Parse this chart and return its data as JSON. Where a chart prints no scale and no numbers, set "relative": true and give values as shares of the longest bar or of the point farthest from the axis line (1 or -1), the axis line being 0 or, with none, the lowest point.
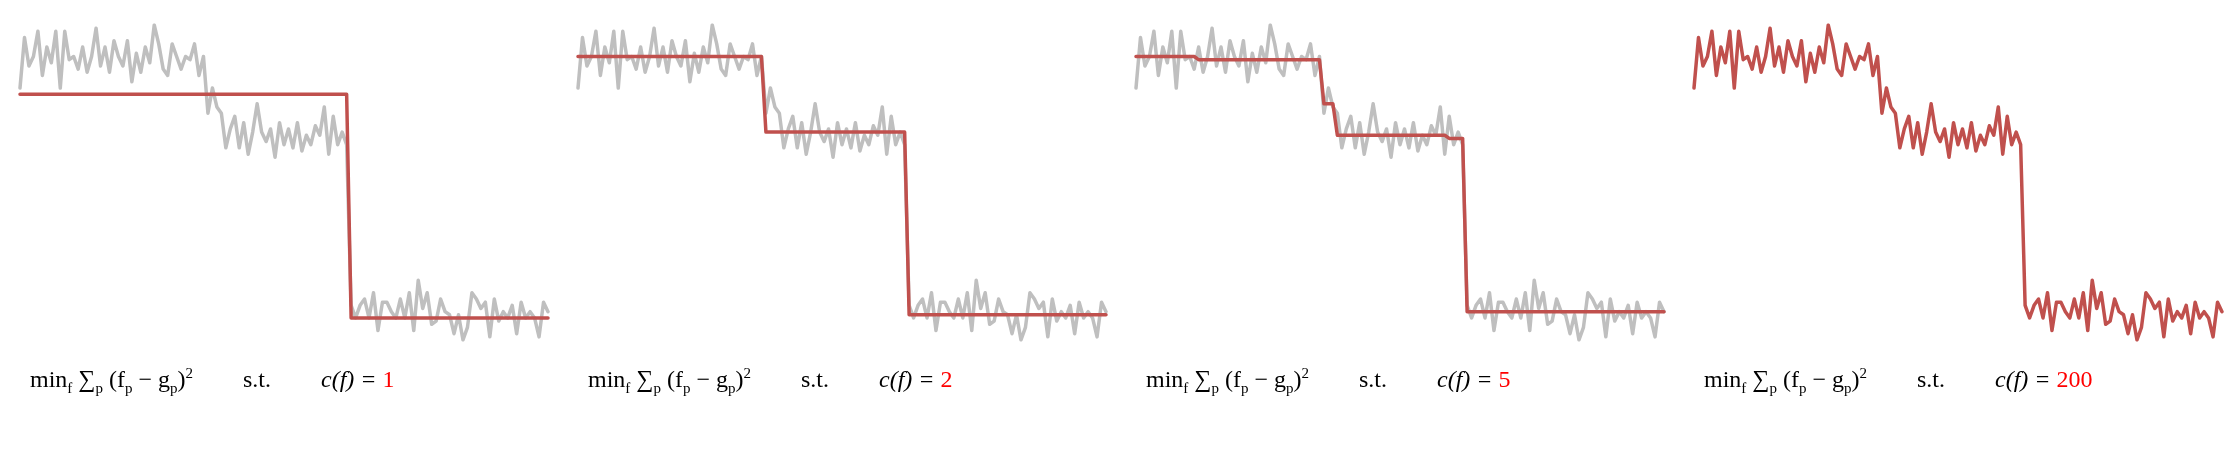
{
  "chart_data": [
    {
      "type": "line",
      "relative": true,
      "categories": [
        null,
        null,
        null,
        null,
        null,
        null,
        null,
        null,
        null,
        null,
        null,
        null,
        null,
        null,
        null,
        null,
        null,
        null,
        null,
        null,
        null,
        null,
        null,
        null,
        null,
        null,
        null,
        null,
        null,
        null,
        null,
        null,
        null,
        null,
        null,
        null,
        null,
        null,
        null,
        null,
        null,
        null,
        null,
        null,
        null,
        null,
        null,
        null,
        null,
        null,
        null,
        null,
        null,
        null,
        null,
        null,
        null,
        null,
        null,
        null,
        null,
        null,
        null,
        null,
        null,
        null,
        null,
        null,
        null,
        null,
        null,
        null,
        null,
        null,
        null,
        null,
        null,
        null,
        null,
        null,
        null,
        null,
        null,
        null,
        null,
        null,
        null,
        null,
        null,
        null,
        null,
        null,
        null,
        null,
        null,
        null,
        null,
        null,
        null,
        null,
        null,
        null,
        null,
        null,
        null,
        null,
        null,
        null,
        null,
        null,
        null,
        null,
        null,
        null,
        null,
        null,
        null,
        null,
        null
      ],
      "series": [
        {
          "color": "#bfbfbf",
          "values": [
            0.8,
            0.96,
            0.87,
            0.9,
            0.98,
            0.84,
            0.93,
            0.88,
            0.98,
            0.8,
            0.98,
            0.89,
            0.9,
            0.86,
            0.93,
            0.85,
            0.9,
            0.99,
            0.87,
            0.93,
            0.85,
            0.95,
            0.9,
            0.87,
            0.95,
            0.82,
            0.91,
            0.85,
            0.93,
            0.88,
            1,
            0.94,
            0.86,
            0.84,
            0.94,
            0.9,
            0.86,
            0.9,
            0.89,
            0.94,
            0.84,
            0.9,
            0.72,
            0.8,
            0.74,
            0.72,
            0.61,
            0.67,
            0.71,
            0.61,
            0.69,
            0.59,
            0.66,
            0.75,
            0.66,
            0.63,
            0.67,
            0.58,
            0.69,
            0.62,
            0.67,
            0.61,
            0.69,
            0.6,
            0.65,
            0.62,
            0.68,
            0.65,
            0.74,
            0.59,
            0.71,
            0.62,
            0.66,
            0.62,
            0.11,
            0.07,
            0.11,
            0.13,
            0.07,
            0.15,
            0.03,
            0.12,
            0.12,
            0.09,
            0.07,
            0.13,
            0.07,
            0.15,
            0.03,
            0.19,
            0.1,
            0.15,
            0.05,
            0.06,
            0.13,
            0.09,
            0.08,
            0.02,
            0.08,
            0,
            0.04,
            0.15,
            0.13,
            0.1,
            0.12,
            0.01,
            0.13,
            0.06,
            0.09,
            0.07,
            0.11,
            0.02,
            0.12,
            0.07,
            0.09,
            0.07,
            0.01,
            0.12,
            0.09
          ]
        },
        {
          "color": "#c0504d",
          "values": [
            0.78,
            0.78,
            0.78,
            0.78,
            0.78,
            0.78,
            0.78,
            0.78,
            0.78,
            0.78,
            0.78,
            0.78,
            0.78,
            0.78,
            0.78,
            0.78,
            0.78,
            0.78,
            0.78,
            0.78,
            0.78,
            0.78,
            0.78,
            0.78,
            0.78,
            0.78,
            0.78,
            0.78,
            0.78,
            0.78,
            0.78,
            0.78,
            0.78,
            0.78,
            0.78,
            0.78,
            0.78,
            0.78,
            0.78,
            0.78,
            0.78,
            0.78,
            0.78,
            0.78,
            0.78,
            0.78,
            0.78,
            0.78,
            0.78,
            0.78,
            0.78,
            0.78,
            0.78,
            0.78,
            0.78,
            0.78,
            0.78,
            0.78,
            0.78,
            0.78,
            0.78,
            0.78,
            0.78,
            0.78,
            0.78,
            0.78,
            0.78,
            0.78,
            0.78,
            0.78,
            0.78,
            0.78,
            0.78,
            0.78,
            0.07,
            0.07,
            0.07,
            0.07,
            0.07,
            0.07,
            0.07,
            0.07,
            0.07,
            0.07,
            0.07,
            0.07,
            0.07,
            0.07,
            0.07,
            0.07,
            0.07,
            0.07,
            0.07,
            0.07,
            0.07,
            0.07,
            0.07,
            0.07,
            0.07,
            0.07,
            0.07,
            0.07,
            0.07,
            0.07,
            0.07,
            0.07,
            0.07,
            0.07,
            0.07,
            0.07,
            0.07,
            0.07,
            0.07,
            0.07,
            0.07,
            0.07,
            0.07,
            0.07,
            0.07
          ]
        }
      ],
      "annotations": [
        "min$_{f}$ ∑$_{p}$ (f$_{p}$ − g$_{p}$)$^{2}$",
        "s.t.",
        "c(f) =",
        "1"
      ]
    },
    {
      "type": "line",
      "relative": true,
      "categories": [
        null,
        null,
        null,
        null,
        null,
        null,
        null,
        null,
        null,
        null,
        null,
        null,
        null,
        null,
        null,
        null,
        null,
        null,
        null,
        null,
        null,
        null,
        null,
        null,
        null,
        null,
        null,
        null,
        null,
        null,
        null,
        null,
        null,
        null,
        null,
        null,
        null,
        null,
        null,
        null,
        null,
        null,
        null,
        null,
        null,
        null,
        null,
        null,
        null,
        null,
        null,
        null,
        null,
        null,
        null,
        null,
        null,
        null,
        null,
        null,
        null,
        null,
        null,
        null,
        null,
        null,
        null,
        null,
        null,
        null,
        null,
        null,
        null,
        null,
        null,
        null,
        null,
        null,
        null,
        null,
        null,
        null,
        null,
        null,
        null,
        null,
        null,
        null,
        null,
        null,
        null,
        null,
        null,
        null,
        null,
        null,
        null,
        null,
        null,
        null,
        null,
        null,
        null,
        null,
        null,
        null,
        null,
        null,
        null,
        null,
        null,
        null,
        null,
        null,
        null,
        null,
        null,
        null,
        null
      ],
      "series": [
        {
          "color": "#bfbfbf",
          "values": [
            0.8,
            0.96,
            0.87,
            0.9,
            0.98,
            0.84,
            0.93,
            0.88,
            0.98,
            0.8,
            0.98,
            0.89,
            0.9,
            0.86,
            0.93,
            0.85,
            0.9,
            0.99,
            0.87,
            0.93,
            0.85,
            0.95,
            0.9,
            0.87,
            0.95,
            0.82,
            0.91,
            0.85,
            0.93,
            0.88,
            1,
            0.94,
            0.86,
            0.84,
            0.94,
            0.9,
            0.86,
            0.9,
            0.89,
            0.94,
            0.84,
            0.9,
            0.72,
            0.8,
            0.74,
            0.72,
            0.61,
            0.67,
            0.71,
            0.61,
            0.69,
            0.59,
            0.66,
            0.75,
            0.66,
            0.63,
            0.67,
            0.58,
            0.69,
            0.62,
            0.67,
            0.61,
            0.69,
            0.6,
            0.65,
            0.62,
            0.68,
            0.65,
            0.74,
            0.59,
            0.71,
            0.62,
            0.66,
            0.62,
            0.11,
            0.07,
            0.11,
            0.13,
            0.07,
            0.15,
            0.03,
            0.12,
            0.12,
            0.09,
            0.07,
            0.13,
            0.07,
            0.15,
            0.03,
            0.19,
            0.1,
            0.15,
            0.05,
            0.06,
            0.13,
            0.09,
            0.08,
            0.02,
            0.08,
            0,
            0.04,
            0.15,
            0.13,
            0.1,
            0.12,
            0.01,
            0.13,
            0.06,
            0.09,
            0.07,
            0.11,
            0.02,
            0.12,
            0.07,
            0.09,
            0.07,
            0.01,
            0.12,
            0.09
          ]
        },
        {
          "color": "#c0504d",
          "values": [
            0.9,
            0.9,
            0.9,
            0.9,
            0.9,
            0.9,
            0.9,
            0.9,
            0.9,
            0.9,
            0.9,
            0.9,
            0.9,
            0.9,
            0.9,
            0.9,
            0.9,
            0.9,
            0.9,
            0.9,
            0.9,
            0.9,
            0.9,
            0.9,
            0.9,
            0.9,
            0.9,
            0.9,
            0.9,
            0.9,
            0.9,
            0.9,
            0.9,
            0.9,
            0.9,
            0.9,
            0.9,
            0.9,
            0.9,
            0.9,
            0.9,
            0.9,
            0.66,
            0.66,
            0.66,
            0.66,
            0.66,
            0.66,
            0.66,
            0.66,
            0.66,
            0.66,
            0.66,
            0.66,
            0.66,
            0.66,
            0.66,
            0.66,
            0.66,
            0.66,
            0.66,
            0.66,
            0.66,
            0.66,
            0.66,
            0.66,
            0.66,
            0.66,
            0.66,
            0.66,
            0.66,
            0.66,
            0.66,
            0.66,
            0.08,
            0.08,
            0.08,
            0.08,
            0.08,
            0.08,
            0.08,
            0.08,
            0.08,
            0.08,
            0.08,
            0.08,
            0.08,
            0.08,
            0.08,
            0.08,
            0.08,
            0.08,
            0.08,
            0.08,
            0.08,
            0.08,
            0.08,
            0.08,
            0.08,
            0.08,
            0.08,
            0.08,
            0.08,
            0.08,
            0.08,
            0.08,
            0.08,
            0.08,
            0.08,
            0.08,
            0.08,
            0.08,
            0.08,
            0.08,
            0.08,
            0.08,
            0.08,
            0.08,
            0.08
          ]
        }
      ],
      "annotations": [
        "min$_{f}$ ∑$_{p}$ (f$_{p}$ − g$_{p}$)$^{2}$",
        "s.t.",
        "c(f) =",
        "2"
      ]
    },
    {
      "type": "line",
      "relative": true,
      "categories": [
        null,
        null,
        null,
        null,
        null,
        null,
        null,
        null,
        null,
        null,
        null,
        null,
        null,
        null,
        null,
        null,
        null,
        null,
        null,
        null,
        null,
        null,
        null,
        null,
        null,
        null,
        null,
        null,
        null,
        null,
        null,
        null,
        null,
        null,
        null,
        null,
        null,
        null,
        null,
        null,
        null,
        null,
        null,
        null,
        null,
        null,
        null,
        null,
        null,
        null,
        null,
        null,
        null,
        null,
        null,
        null,
        null,
        null,
        null,
        null,
        null,
        null,
        null,
        null,
        null,
        null,
        null,
        null,
        null,
        null,
        null,
        null,
        null,
        null,
        null,
        null,
        null,
        null,
        null,
        null,
        null,
        null,
        null,
        null,
        null,
        null,
        null,
        null,
        null,
        null,
        null,
        null,
        null,
        null,
        null,
        null,
        null,
        null,
        null,
        null,
        null,
        null,
        null,
        null,
        null,
        null,
        null,
        null,
        null,
        null,
        null,
        null,
        null,
        null,
        null,
        null,
        null,
        null,
        null
      ],
      "series": [
        {
          "color": "#bfbfbf",
          "values": [
            0.8,
            0.96,
            0.87,
            0.9,
            0.98,
            0.84,
            0.93,
            0.88,
            0.98,
            0.8,
            0.98,
            0.89,
            0.9,
            0.86,
            0.93,
            0.85,
            0.9,
            0.99,
            0.87,
            0.93,
            0.85,
            0.95,
            0.9,
            0.87,
            0.95,
            0.82,
            0.91,
            0.85,
            0.93,
            0.88,
            1,
            0.94,
            0.86,
            0.84,
            0.94,
            0.9,
            0.86,
            0.9,
            0.89,
            0.94,
            0.84,
            0.9,
            0.72,
            0.8,
            0.74,
            0.72,
            0.61,
            0.67,
            0.71,
            0.61,
            0.69,
            0.59,
            0.66,
            0.75,
            0.66,
            0.63,
            0.67,
            0.58,
            0.69,
            0.62,
            0.67,
            0.61,
            0.69,
            0.6,
            0.65,
            0.62,
            0.68,
            0.65,
            0.74,
            0.59,
            0.71,
            0.62,
            0.66,
            0.62,
            0.11,
            0.07,
            0.11,
            0.13,
            0.07,
            0.15,
            0.03,
            0.12,
            0.12,
            0.09,
            0.07,
            0.13,
            0.07,
            0.15,
            0.03,
            0.19,
            0.1,
            0.15,
            0.05,
            0.06,
            0.13,
            0.09,
            0.08,
            0.02,
            0.08,
            0,
            0.04,
            0.15,
            0.13,
            0.1,
            0.12,
            0.01,
            0.13,
            0.06,
            0.09,
            0.07,
            0.11,
            0.02,
            0.12,
            0.07,
            0.09,
            0.07,
            0.01,
            0.12,
            0.09
          ]
        },
        {
          "color": "#c0504d",
          "values": [
            0.9,
            0.9,
            0.9,
            0.9,
            0.9,
            0.9,
            0.9,
            0.9,
            0.9,
            0.9,
            0.9,
            0.9,
            0.9,
            0.9,
            0.89,
            0.89,
            0.89,
            0.89,
            0.89,
            0.89,
            0.89,
            0.89,
            0.89,
            0.89,
            0.89,
            0.89,
            0.89,
            0.89,
            0.89,
            0.89,
            0.89,
            0.89,
            0.89,
            0.89,
            0.89,
            0.89,
            0.89,
            0.89,
            0.89,
            0.89,
            0.89,
            0.89,
            0.75,
            0.75,
            0.75,
            0.65,
            0.65,
            0.65,
            0.65,
            0.65,
            0.65,
            0.65,
            0.65,
            0.65,
            0.65,
            0.65,
            0.65,
            0.65,
            0.65,
            0.65,
            0.65,
            0.65,
            0.65,
            0.65,
            0.65,
            0.65,
            0.65,
            0.65,
            0.65,
            0.65,
            0.64,
            0.64,
            0.64,
            0.64,
            0.09,
            0.09,
            0.09,
            0.09,
            0.09,
            0.09,
            0.09,
            0.09,
            0.09,
            0.09,
            0.09,
            0.09,
            0.09,
            0.09,
            0.09,
            0.09,
            0.09,
            0.09,
            0.09,
            0.09,
            0.09,
            0.09,
            0.09,
            0.09,
            0.09,
            0.09,
            0.09,
            0.09,
            0.09,
            0.09,
            0.09,
            0.09,
            0.09,
            0.09,
            0.09,
            0.09,
            0.09,
            0.09,
            0.09,
            0.09,
            0.09,
            0.09,
            0.09,
            0.09,
            0.09
          ]
        }
      ],
      "annotations": [
        "min$_{f}$ ∑$_{p}$ (f$_{p}$ − g$_{p}$)$^{2}$",
        "s.t.",
        "c(f) =",
        "5"
      ]
    },
    {
      "type": "line",
      "relative": true,
      "categories": [
        null,
        null,
        null,
        null,
        null,
        null,
        null,
        null,
        null,
        null,
        null,
        null,
        null,
        null,
        null,
        null,
        null,
        null,
        null,
        null,
        null,
        null,
        null,
        null,
        null,
        null,
        null,
        null,
        null,
        null,
        null,
        null,
        null,
        null,
        null,
        null,
        null,
        null,
        null,
        null,
        null,
        null,
        null,
        null,
        null,
        null,
        null,
        null,
        null,
        null,
        null,
        null,
        null,
        null,
        null,
        null,
        null,
        null,
        null,
        null,
        null,
        null,
        null,
        null,
        null,
        null,
        null,
        null,
        null,
        null,
        null,
        null,
        null,
        null,
        null,
        null,
        null,
        null,
        null,
        null,
        null,
        null,
        null,
        null,
        null,
        null,
        null,
        null,
        null,
        null,
        null,
        null,
        null,
        null,
        null,
        null,
        null,
        null,
        null,
        null,
        null,
        null,
        null,
        null,
        null,
        null,
        null,
        null,
        null,
        null,
        null,
        null,
        null,
        null,
        null,
        null,
        null,
        null,
        null
      ],
      "series": [
        {
          "color": "#c0504d",
          "values": [
            0.8,
            0.96,
            0.87,
            0.9,
            0.98,
            0.84,
            0.93,
            0.88,
            0.98,
            0.8,
            0.98,
            0.89,
            0.9,
            0.86,
            0.93,
            0.85,
            0.9,
            0.99,
            0.87,
            0.93,
            0.85,
            0.95,
            0.9,
            0.87,
            0.95,
            0.82,
            0.91,
            0.85,
            0.93,
            0.88,
            1,
            0.94,
            0.86,
            0.84,
            0.94,
            0.9,
            0.86,
            0.9,
            0.89,
            0.94,
            0.84,
            0.9,
            0.72,
            0.8,
            0.74,
            0.72,
            0.61,
            0.67,
            0.71,
            0.61,
            0.69,
            0.59,
            0.66,
            0.75,
            0.66,
            0.63,
            0.67,
            0.58,
            0.69,
            0.62,
            0.67,
            0.61,
            0.69,
            0.6,
            0.65,
            0.62,
            0.68,
            0.65,
            0.74,
            0.59,
            0.71,
            0.62,
            0.66,
            0.62,
            0.11,
            0.07,
            0.11,
            0.13,
            0.07,
            0.15,
            0.03,
            0.12,
            0.12,
            0.09,
            0.07,
            0.13,
            0.07,
            0.15,
            0.03,
            0.19,
            0.1,
            0.15,
            0.05,
            0.06,
            0.13,
            0.09,
            0.08,
            0.02,
            0.08,
            0,
            0.04,
            0.15,
            0.13,
            0.1,
            0.12,
            0.01,
            0.13,
            0.06,
            0.09,
            0.07,
            0.11,
            0.02,
            0.12,
            0.07,
            0.09,
            0.07,
            0.01,
            0.12,
            0.09
          ]
        }
      ],
      "annotations": [
        "min$_{f}$ ∑$_{p}$ (f$_{p}$ − g$_{p}$)$^{2}$",
        "s.t.",
        "c(f) =",
        "200"
      ]
    }
  ]
}
